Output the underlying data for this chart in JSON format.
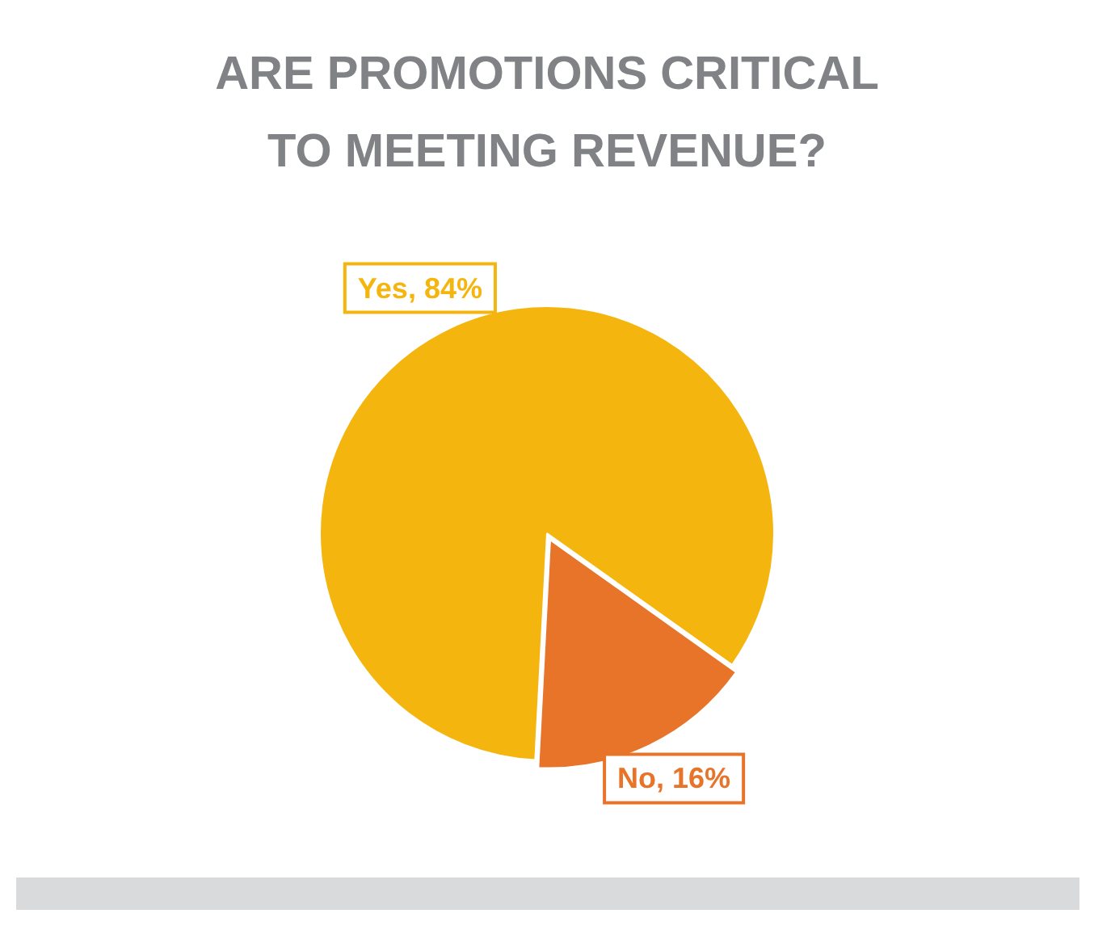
{
  "chart_data": {
    "type": "pie",
    "title": "ARE PROMOTIONS CRITICAL TO MEETING REVENUE?",
    "categories": [
      "Yes",
      "No"
    ],
    "values": [
      84,
      16
    ],
    "colors": [
      "#f5b50f",
      "#e8742a"
    ],
    "value_labels": [
      "84%",
      "16%"
    ],
    "legend": false
  }
}
